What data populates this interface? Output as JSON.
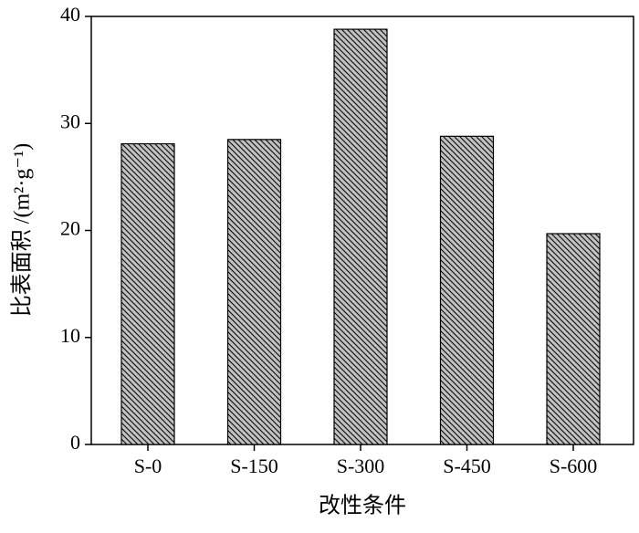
{
  "chart_data": {
    "type": "bar",
    "categories": [
      "S-0",
      "S-150",
      "S-300",
      "S-450",
      "S-600"
    ],
    "values": [
      28.1,
      28.5,
      38.8,
      28.8,
      19.7
    ],
    "color": "#c0c0c0",
    "hatch": "\\\\",
    "ylim": [
      0,
      40
    ],
    "yticks": [
      0,
      10,
      20,
      30,
      40
    ],
    "x_label": "改性条件",
    "y_label": "比表面积 /(m²·g⁻¹)"
  }
}
